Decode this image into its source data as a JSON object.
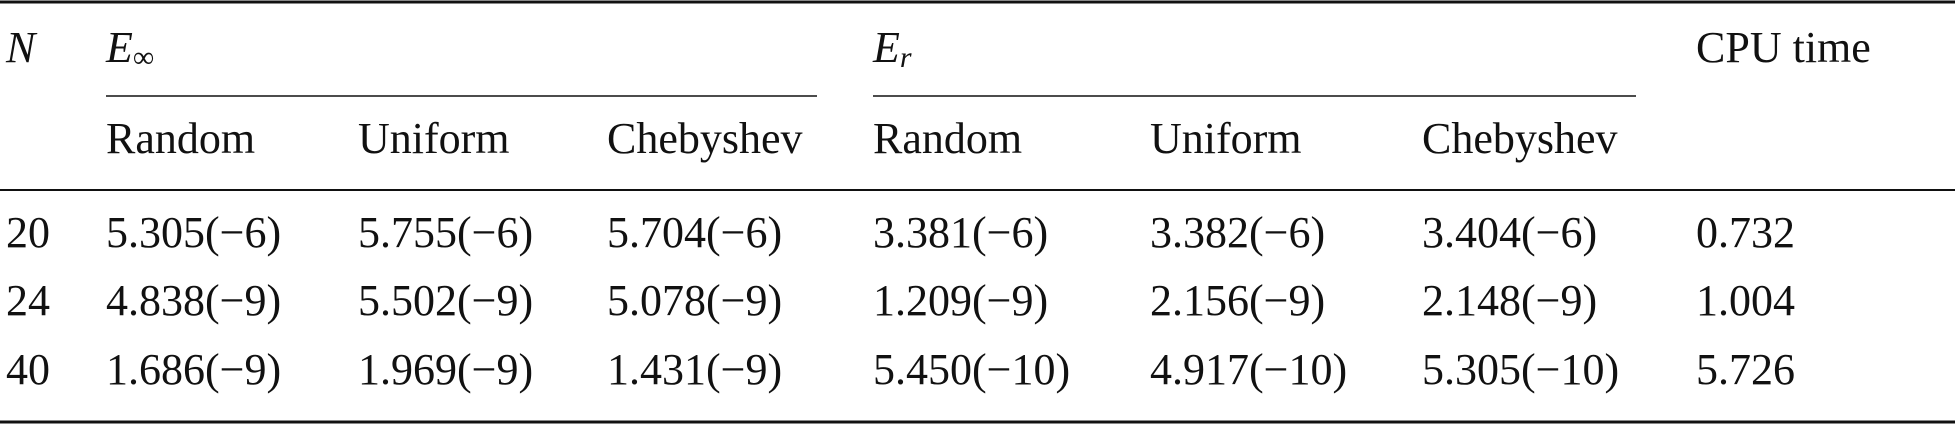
{
  "table": {
    "header": {
      "n": "N",
      "e_inf": {
        "main": "E",
        "sub": "∞"
      },
      "e_r": {
        "main": "E",
        "sub": "r"
      },
      "cpu": "CPU time"
    },
    "subheader": [
      "Random",
      "Uniform",
      "Chebyshev",
      "Random",
      "Uniform",
      "Chebyshev"
    ],
    "rows": [
      [
        "20",
        "5.305(−6)",
        "5.755(−6)",
        "5.704(−6)",
        "3.381(−6)",
        "3.382(−6)",
        "3.404(−6)",
        "0.732"
      ],
      [
        "24",
        "4.838(−9)",
        "5.502(−9)",
        "5.078(−9)",
        "1.209(−9)",
        "2.156(−9)",
        "2.148(−9)",
        "1.004"
      ],
      [
        "40",
        "1.686(−9)",
        "1.969(−9)",
        "1.431(−9)",
        "5.450(−10)",
        "4.917(−10)",
        "5.305(−10)",
        "5.726"
      ]
    ]
  }
}
